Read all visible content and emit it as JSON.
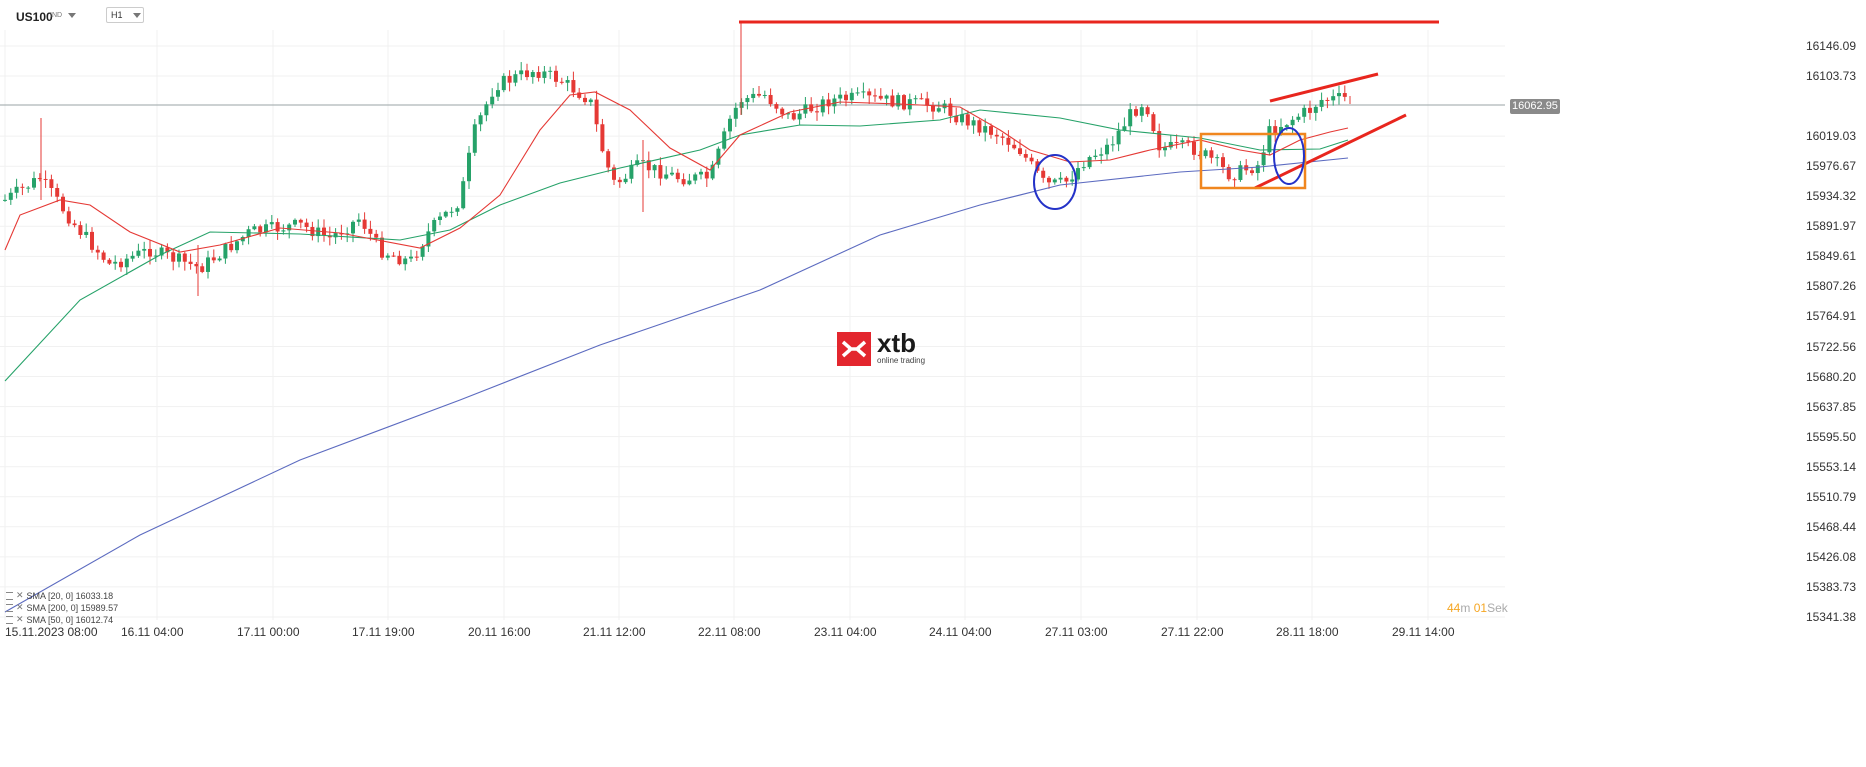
{
  "instrument": {
    "symbol": "US100",
    "type": "IND",
    "timeframe": "H1"
  },
  "current_price": "16062.95",
  "price_axis": [
    "16146.09",
    "16103.73",
    "16019.03",
    "15976.67",
    "15934.32",
    "15891.97",
    "15849.61",
    "15807.26",
    "15764.91",
    "15722.56",
    "15680.20",
    "15637.85",
    "15595.50",
    "15553.14",
    "15510.79",
    "15468.44",
    "15426.08",
    "15383.73",
    "15341.38"
  ],
  "time_axis": [
    "15.11.2023   08:00",
    "16.11  04:00",
    "17.11  00:00",
    "17.11  19:00",
    "20.11  16:00",
    "21.11  12:00",
    "22.11  08:00",
    "23.11  04:00",
    "24.11  04:00",
    "27.11  03:00",
    "27.11  22:00",
    "28.11  18:00",
    "29.11  14:00"
  ],
  "indicators": [
    {
      "label": "SMA [20, 0] 16033.18",
      "color": "#e53935"
    },
    {
      "label": "SMA [200, 0] 15989.57",
      "color": "#5c6bc0"
    },
    {
      "label": "SMA [50, 0] 16012.74",
      "color": "#26a269"
    }
  ],
  "countdown": {
    "minutes": "44",
    "m_unit": "m",
    "seconds": "01",
    "s_unit": "Sek"
  },
  "logo": {
    "name": "xtb",
    "tagline": "online trading"
  },
  "colors": {
    "bull": "#26a269",
    "bear": "#e53935",
    "annotation_red": "#e8261e",
    "annotation_blue": "#2432c8",
    "annotation_orange": "#f0861e"
  }
}
